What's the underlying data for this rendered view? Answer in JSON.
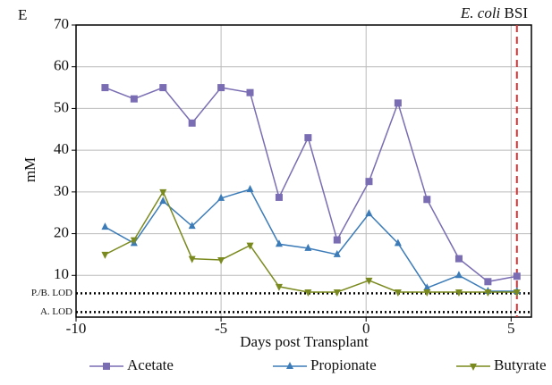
{
  "chart_data": {
    "type": "line",
    "panel_label": "E",
    "event_label_italic": "E. coli",
    "event_label": "BSI",
    "event_x": 5.2,
    "xlabel": "Days post Transplant",
    "ylabel": "mM",
    "x": [
      -9,
      -8,
      -7,
      -6,
      -5,
      -4,
      -3,
      -2,
      -1,
      0.1,
      1.1,
      2.1,
      3.2,
      4.2,
      5.2
    ],
    "series": [
      {
        "name": "Acetate",
        "color": "#7a6db3",
        "marker": "square",
        "values": [
          55,
          52.3,
          55,
          46.5,
          55,
          53.8,
          28.7,
          43,
          18.5,
          32.5,
          51.3,
          28.2,
          14,
          8.5,
          9.8
        ]
      },
      {
        "name": "Propionate",
        "color": "#3b7bb8",
        "marker": "triangle-up",
        "values": [
          21.6,
          17.7,
          27.8,
          21.8,
          28.5,
          30.6,
          17.5,
          16.5,
          15,
          24.8,
          17.7,
          7,
          10,
          6.2,
          6.2
        ]
      },
      {
        "name": "Butyrate",
        "color": "#7b8a1f",
        "marker": "triangle-down",
        "values": [
          15,
          18.5,
          30,
          14,
          13.7,
          17.2,
          7.3,
          6,
          6,
          8.8,
          6,
          6,
          6,
          6,
          6
        ]
      }
    ],
    "reference_lines": [
      {
        "label": "P./B. LOD",
        "value": 5.7
      },
      {
        "label": "A. LOD",
        "value": 1.2
      }
    ],
    "xlim": [
      -10,
      5.7
    ],
    "ylim": [
      0,
      70
    ],
    "xticks": [
      -10,
      -5,
      0,
      5
    ],
    "yticks": [
      10,
      20,
      30,
      40,
      50,
      60,
      70
    ],
    "grid": true
  }
}
